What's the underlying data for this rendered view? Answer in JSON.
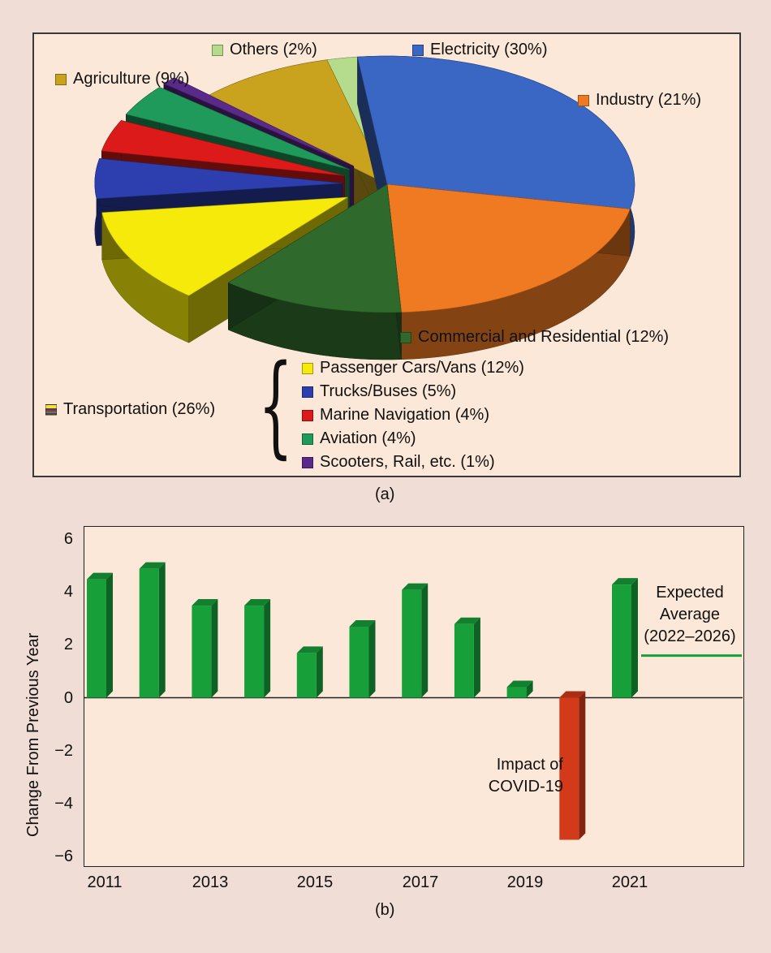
{
  "colors": {
    "electricity": "#3a66c4",
    "industry": "#f07a22",
    "commercial": "#2f6a2c",
    "agriculture": "#c9a21e",
    "others": "#b4dc8c",
    "passenger": "#f6ea0a",
    "trucks": "#2d3fae",
    "marine": "#dc1a1a",
    "aviation": "#1f9a5a",
    "scooters": "#5a2a8a",
    "bar_positive": "#17a03a",
    "bar_negative": "#d33a1a",
    "expected_line": "#17a03a"
  },
  "chart_data": [
    {
      "type": "pie",
      "panel_label": "(a)",
      "style": "3d-exploded",
      "slices": [
        {
          "label": "Electricity (30%)",
          "value": 30,
          "color_key": "electricity"
        },
        {
          "label": "Industry (21%)",
          "value": 21,
          "color_key": "industry"
        },
        {
          "label": "Commercial and Residential (12%)",
          "value": 12,
          "color_key": "commercial"
        },
        {
          "label": "Transportation (26%)",
          "value": 26,
          "color_key": "passenger",
          "sub_slices": [
            {
              "label": "Passenger Cars/Vans (12%)",
              "value": 12,
              "color_key": "passenger"
            },
            {
              "label": "Trucks/Buses (5%)",
              "value": 5,
              "color_key": "trucks"
            },
            {
              "label": "Marine Navigation (4%)",
              "value": 4,
              "color_key": "marine"
            },
            {
              "label": "Aviation (4%)",
              "value": 4,
              "color_key": "aviation"
            },
            {
              "label": "Scooters, Rail, etc. (1%)",
              "value": 1,
              "color_key": "scooters"
            }
          ]
        },
        {
          "label": "Agriculture (9%)",
          "value": 9,
          "color_key": "agriculture"
        },
        {
          "label": "Others (2%)",
          "value": 2,
          "color_key": "others"
        }
      ]
    },
    {
      "type": "bar",
      "panel_label": "(b)",
      "ylabel": "Change From Previous Year",
      "ylim": [
        -6,
        6
      ],
      "yticks": [
        6,
        4,
        2,
        0,
        -2,
        -4,
        -6
      ],
      "ytick_labels": [
        "6",
        "4",
        "2",
        "0",
        "−2",
        "−4",
        "−6"
      ],
      "x_tick_labels": [
        "2011",
        "2013",
        "2015",
        "2017",
        "2019",
        "2021"
      ],
      "categories": [
        "2011",
        "2012",
        "2013",
        "2014",
        "2015",
        "2016",
        "2017",
        "2018",
        "2019",
        "2020",
        "2021"
      ],
      "values": [
        4.5,
        4.9,
        3.5,
        3.5,
        1.7,
        2.7,
        4.1,
        2.8,
        0.4,
        -5.4,
        4.3
      ],
      "expected_average": {
        "value": 1.6,
        "label_lines": [
          "Expected",
          "Average",
          "(2022–2026)"
        ]
      },
      "annotation": {
        "lines": [
          "Impact of",
          "COVID-19"
        ]
      }
    }
  ]
}
